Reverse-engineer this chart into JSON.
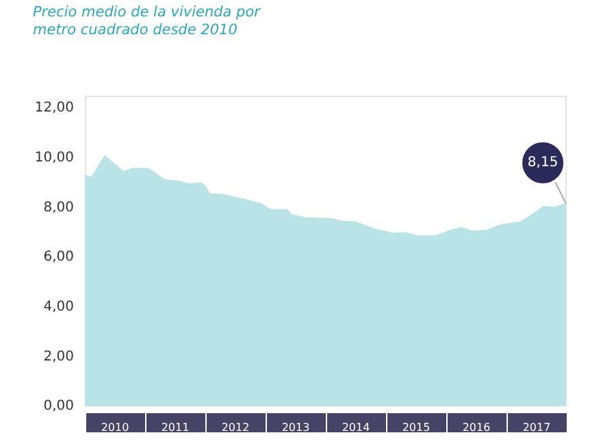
{
  "chart_data": {
    "type": "area",
    "title": "Precio medio de la vivienda por metro cuadrado desde 2010",
    "x": [
      2010.0,
      2010.11,
      2010.33,
      2010.64,
      2010.79,
      2011.05,
      2011.32,
      2011.55,
      2011.73,
      2011.93,
      2012.0,
      2012.07,
      2012.3,
      2012.61,
      2012.91,
      2013.09,
      2013.36,
      2013.43,
      2013.66,
      2014.09,
      2014.27,
      2014.5,
      2014.8,
      2015.11,
      2015.34,
      2015.52,
      2015.82,
      2016.02,
      2016.25,
      2016.43,
      2016.66,
      2016.93,
      2017.23,
      2017.41,
      2017.61,
      2017.8,
      2017.99
    ],
    "values": [
      9.3,
      9.2,
      10.07,
      9.44,
      9.57,
      9.57,
      9.12,
      9.06,
      8.94,
      8.98,
      8.85,
      8.54,
      8.52,
      8.34,
      8.16,
      7.91,
      7.91,
      7.71,
      7.58,
      7.55,
      7.44,
      7.41,
      7.14,
      6.96,
      6.98,
      6.86,
      6.85,
      7.04,
      7.19,
      7.04,
      7.08,
      7.31,
      7.41,
      7.68,
      8.04,
      8.0,
      8.15
    ],
    "color": "#b9e3e6",
    "xlim": [
      2010,
      2018
    ],
    "xticks": [
      {
        "value": 2010.5,
        "label": "2010"
      },
      {
        "value": 2011.5,
        "label": "2011"
      },
      {
        "value": 2012.5,
        "label": "2012"
      },
      {
        "value": 2013.5,
        "label": "2013"
      },
      {
        "value": 2014.5,
        "label": "2014"
      },
      {
        "value": 2015.5,
        "label": "2015"
      },
      {
        "value": 2016.5,
        "label": "2016"
      },
      {
        "value": 2017.5,
        "label": "2017"
      }
    ],
    "ylim": [
      0,
      12.5
    ],
    "yticks": [
      {
        "value": 0,
        "label": "0,00"
      },
      {
        "value": 2,
        "label": "2,00"
      },
      {
        "value": 4,
        "label": "4,00"
      },
      {
        "value": 6,
        "label": "6,00"
      },
      {
        "value": 8,
        "label": "8,00"
      },
      {
        "value": 10,
        "label": "10,00"
      },
      {
        "value": 12,
        "label": "12,00"
      }
    ],
    "annotations": [
      {
        "text": "8,15",
        "x": 2017.99,
        "y": 8.15
      }
    ],
    "grid": false,
    "legend": false
  }
}
